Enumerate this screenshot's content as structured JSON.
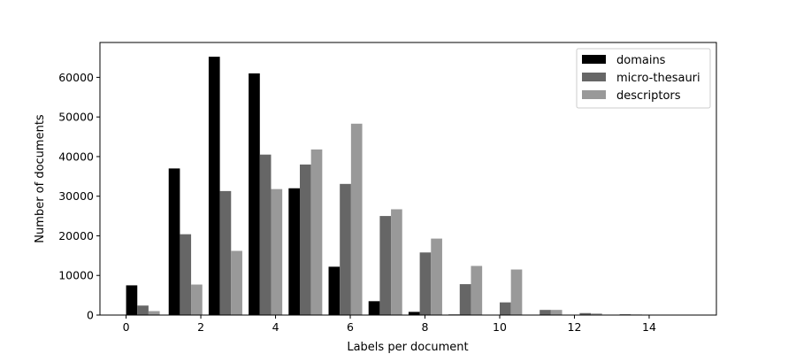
{
  "chart_data": {
    "type": "bar",
    "title": "",
    "xlabel": "Labels per document",
    "ylabel": "Number of documents",
    "xlim": [
      -0.7,
      15.8
    ],
    "ylim": [
      0,
      68800
    ],
    "xticks": [
      0,
      2,
      4,
      6,
      8,
      10,
      12,
      14
    ],
    "yticks": [
      0,
      10000,
      20000,
      30000,
      40000,
      50000,
      60000
    ],
    "grid": false,
    "legend_position": "top-right",
    "bin_starts": [
      0,
      1.14,
      2.21,
      3.28,
      4.35,
      5.42,
      6.49,
      7.56,
      8.63,
      9.7,
      10.77,
      11.84,
      12.91,
      13.98
    ],
    "series": [
      {
        "name": "domains",
        "color": "#000000",
        "values": [
          7500,
          37000,
          65200,
          61000,
          32000,
          12200,
          3500,
          800,
          150,
          20,
          0,
          0,
          0,
          0
        ]
      },
      {
        "name": "micro-thesauri",
        "color": "#666666",
        "values": [
          2400,
          20400,
          31300,
          40500,
          38000,
          33100,
          25000,
          15800,
          7800,
          3200,
          1300,
          500,
          200,
          100
        ]
      },
      {
        "name": "descriptors",
        "color": "#999999",
        "values": [
          1000,
          7700,
          16200,
          31800,
          41800,
          48300,
          26700,
          19300,
          12400,
          11500,
          1300,
          400,
          150,
          50
        ]
      }
    ]
  }
}
